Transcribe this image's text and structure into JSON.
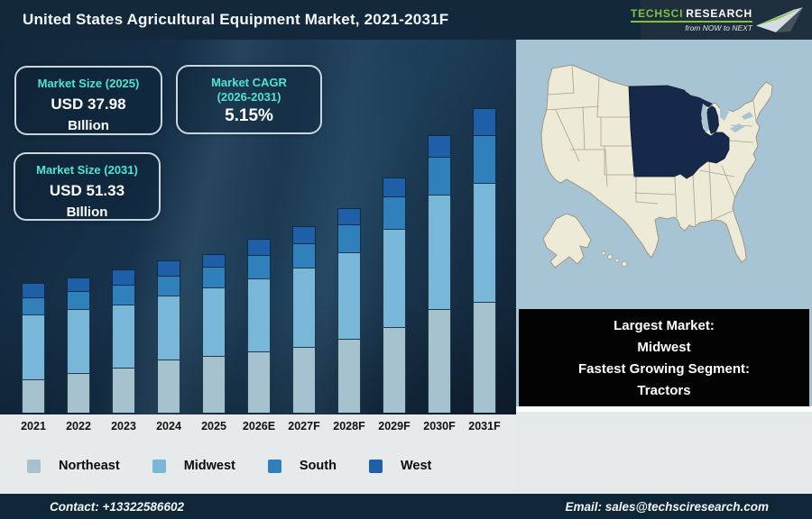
{
  "header": {
    "title": "United States Agricultural Equipment Market, 2021-2031F",
    "logo": {
      "brand_primary": "TechSci",
      "brand_secondary": "Research",
      "tagline": "from NOW to NEXT"
    }
  },
  "stats": {
    "box_2025": {
      "title": "Market Size (2025)",
      "value": "USD 37.98",
      "unit": "BIllion"
    },
    "box_cagr": {
      "title_line1": "Market CAGR",
      "title_line2": "(2026-2031)",
      "value": "5.15%"
    },
    "box_2031": {
      "title": "Market Size (2031)",
      "value": "USD 51.33",
      "unit": "BIllion"
    }
  },
  "chart_data": {
    "type": "bar",
    "stacked": true,
    "title": "United States Agricultural Equipment Market, 2021-2031F",
    "categories": [
      "2021",
      "2022",
      "2023",
      "2024",
      "2025",
      "2026E",
      "2027F",
      "2028F",
      "2029F",
      "2030F",
      "2031F"
    ],
    "series": [
      {
        "name": "Northeast",
        "color": "#A7C2CF",
        "values": [
          37,
          44,
          50,
          59,
          63,
          68,
          73,
          82,
          95,
          115,
          123
        ]
      },
      {
        "name": "Midwest",
        "color": "#79B7D9",
        "values": [
          72,
          71,
          70,
          71,
          76,
          81,
          88,
          96,
          109,
          127,
          132
        ]
      },
      {
        "name": "South",
        "color": "#3080BC",
        "values": [
          19,
          20,
          22,
          22,
          23,
          26,
          27,
          31,
          36,
          42,
          53
        ]
      },
      {
        "name": "West",
        "color": "#1F5FA8",
        "values": [
          16,
          15,
          17,
          17,
          14,
          18,
          19,
          18,
          21,
          24,
          30
        ]
      }
    ],
    "units": "relative bar height in pixels (no y-axis shown in figure)",
    "known_values": {
      "total_2025": "USD 37.98 Billion",
      "total_2031": "USD 51.33 Billion",
      "cagr_2026_2031": "5.15%"
    },
    "legend_position": "bottom",
    "grid": false
  },
  "map": {
    "highlighted_region": "Midwest"
  },
  "highlight_box": {
    "lines": [
      "Largest Market:",
      "Midwest",
      "Fastest Growing Segment:",
      "Tractors"
    ]
  },
  "footer": {
    "contact": "Contact: +13322586602",
    "email": "Email: sales@techsciresearch.com"
  },
  "colors": {
    "accent_teal": "#4FE3D2",
    "logo_green": "#7DC242",
    "header_bg": "#13293B",
    "footer_bg": "#0F2637",
    "chart_bg": "#16314A",
    "map_water": "#A6C4D3",
    "map_land": "#EDEAD8",
    "map_highlight": "#16294A",
    "strip_bg": "#E7EAEB"
  }
}
